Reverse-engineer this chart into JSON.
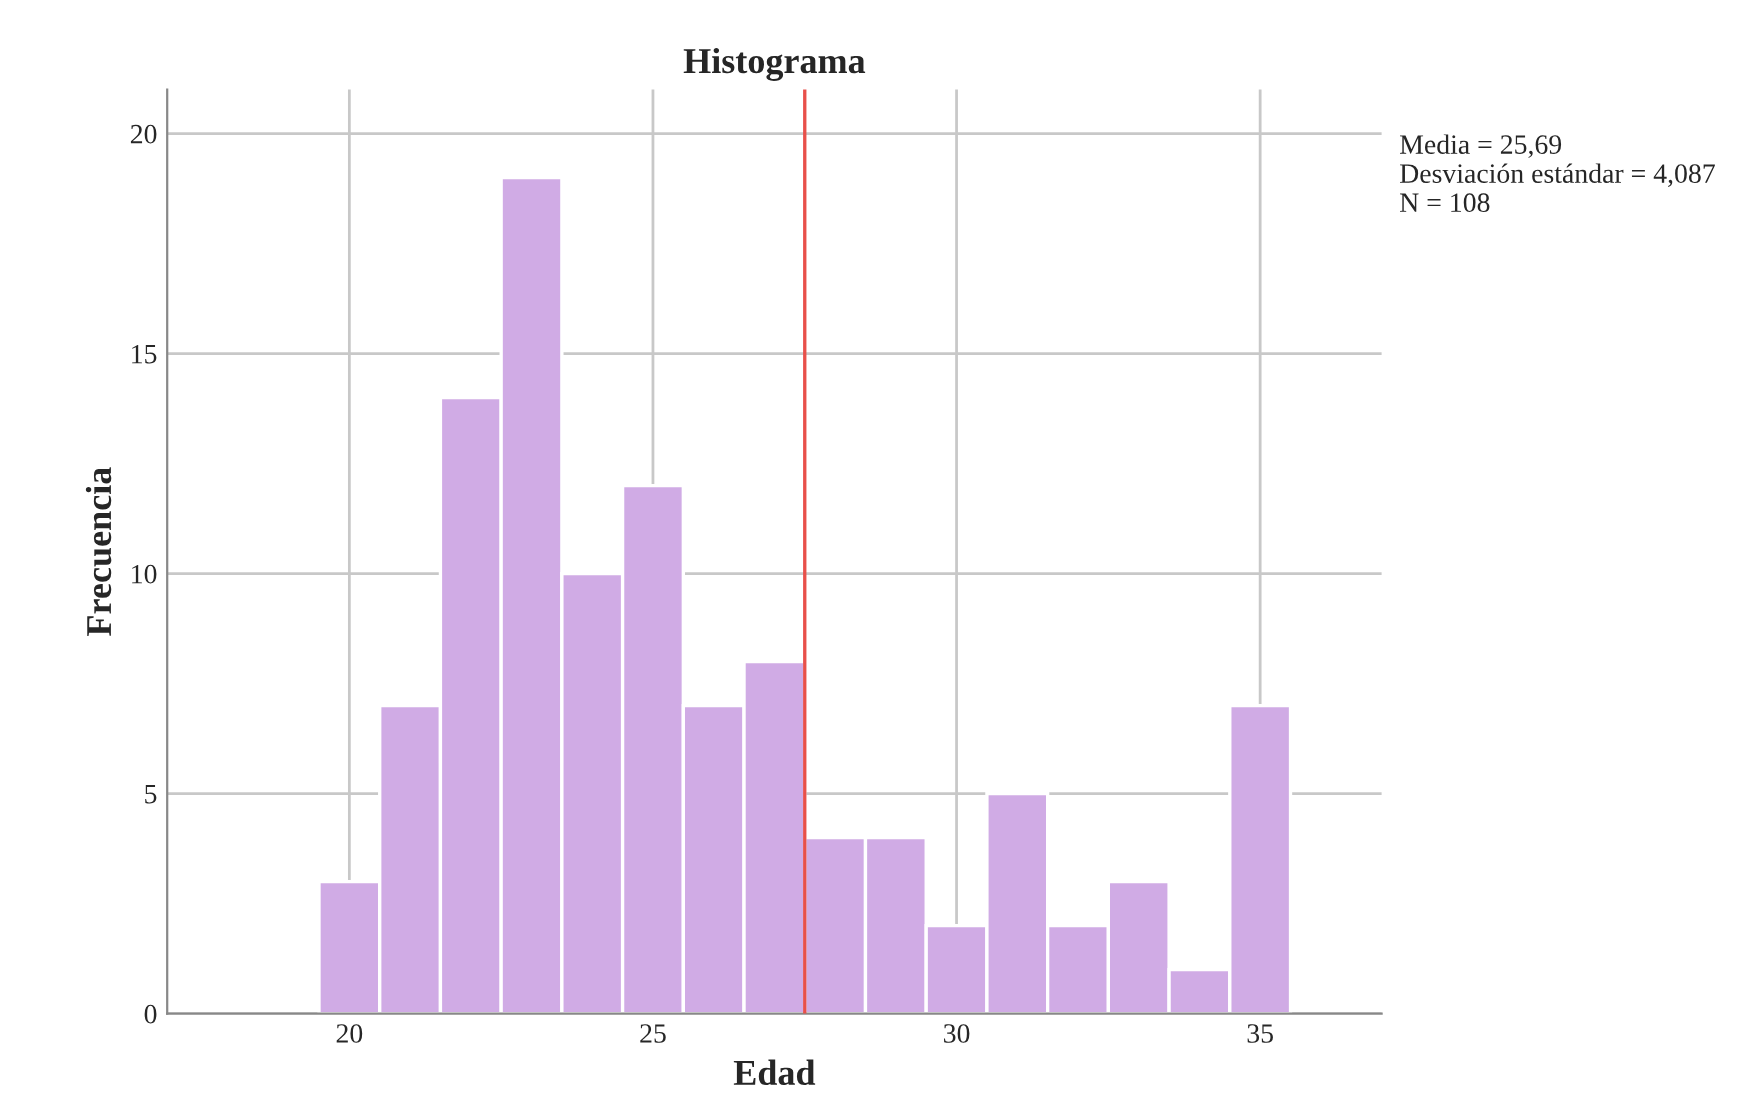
{
  "chart_data": {
    "type": "histogram",
    "title": "Histograma",
    "xlabel": "Edad",
    "ylabel": "Frecuencia",
    "bins": [
      19.5,
      20.5,
      21.5,
      22.5,
      23.5,
      24.5,
      25.5,
      26.5,
      27.5,
      28.5,
      29.5,
      30.5,
      31.5,
      32.5,
      33.5,
      34.5,
      35.5
    ],
    "values": [
      3,
      7,
      14,
      19,
      10,
      12,
      7,
      8,
      4,
      4,
      2,
      5,
      2,
      3,
      1,
      7
    ],
    "color": "#d0abe5",
    "xlim": [
      17,
      37
    ],
    "xticks": [
      20,
      25,
      30,
      35
    ],
    "ylim": [
      0,
      21
    ],
    "yticks": [
      0,
      5,
      10,
      15,
      20
    ],
    "grid": true,
    "ref_lines": [
      {
        "axis": "x",
        "value": 27.5,
        "color": "#e8504a"
      }
    ],
    "annotations": [
      "Media = 25,69\nDesviación estándar = 4,087\nN = 108"
    ]
  }
}
